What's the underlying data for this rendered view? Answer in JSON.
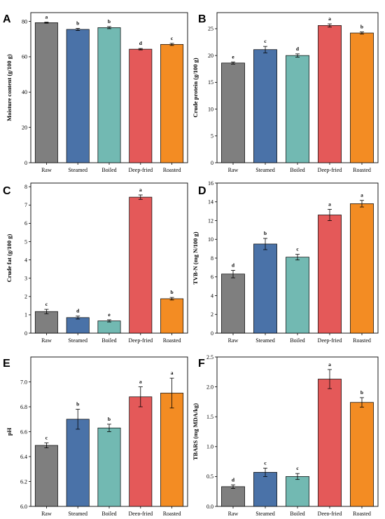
{
  "colors": {
    "Raw": "#7f7f7f",
    "Steamed": "#4a72a8",
    "Boiled": "#72b9b2",
    "Deep-fried": "#e45959",
    "Roasted": "#f38c23"
  },
  "chart_data": [
    {
      "panel": "A",
      "type": "bar",
      "categories": [
        "Raw",
        "Steamed",
        "Boiled",
        "Deep-fried",
        "Roasted"
      ],
      "values": [
        79.3,
        75.5,
        76.5,
        64.3,
        67.0
      ],
      "errors": [
        0.3,
        0.6,
        0.6,
        0.4,
        0.6
      ],
      "labels": [
        "a",
        "b",
        "b",
        "d",
        "c"
      ],
      "ylabel": "Moisture content (g/100 g)",
      "ylim": [
        0,
        85
      ],
      "yticks": [
        0,
        20,
        40,
        60,
        80
      ]
    },
    {
      "panel": "B",
      "type": "bar",
      "categories": [
        "Raw",
        "Steamed",
        "Boiled",
        "Deep-fried",
        "Roasted"
      ],
      "values": [
        18.6,
        21.1,
        20.0,
        25.6,
        24.2
      ],
      "errors": [
        0.2,
        0.6,
        0.3,
        0.3,
        0.2
      ],
      "labels": [
        "e",
        "c",
        "d",
        "a",
        "b"
      ],
      "ylabel": "Crude protein (g/100 g)",
      "ylim": [
        0,
        28
      ],
      "yticks": [
        0,
        5,
        10,
        15,
        20,
        25
      ]
    },
    {
      "panel": "C",
      "type": "bar",
      "categories": [
        "Raw",
        "Steamed",
        "Boiled",
        "Deep-fried",
        "Roasted"
      ],
      "values": [
        1.18,
        0.85,
        0.67,
        7.43,
        1.88
      ],
      "errors": [
        0.12,
        0.08,
        0.06,
        0.12,
        0.07
      ],
      "labels": [
        "c",
        "d",
        "e",
        "a",
        "b"
      ],
      "ylabel": "Crude fat (g/100 g)",
      "ylim": [
        0,
        8.2
      ],
      "yticks": [
        0,
        1,
        2,
        3,
        4,
        5,
        6,
        7,
        8
      ]
    },
    {
      "panel": "D",
      "type": "bar",
      "categories": [
        "Raw",
        "Steamed",
        "Boiled",
        "Deep-fried",
        "Roasted"
      ],
      "values": [
        6.3,
        9.5,
        8.1,
        12.6,
        13.8
      ],
      "errors": [
        0.4,
        0.6,
        0.3,
        0.6,
        0.35
      ],
      "labels": [
        "d",
        "b",
        "c",
        "a",
        "a"
      ],
      "ylabel": "TVB-N (mg N/100 g)",
      "ylim": [
        0,
        16
      ],
      "yticks": [
        0,
        2,
        4,
        6,
        8,
        10,
        12,
        14,
        16
      ]
    },
    {
      "panel": "E",
      "type": "bar",
      "categories": [
        "Raw",
        "Steamed",
        "Boiled",
        "Deep-fried",
        "Roasted"
      ],
      "values": [
        6.49,
        6.7,
        6.63,
        6.88,
        6.91
      ],
      "errors": [
        0.02,
        0.08,
        0.03,
        0.08,
        0.12
      ],
      "labels": [
        "c",
        "b",
        "b",
        "a",
        "a"
      ],
      "ylabel": "pH",
      "ylim": [
        6.0,
        7.2
      ],
      "yticks": [
        6.0,
        6.2,
        6.4,
        6.6,
        6.8,
        7.0
      ]
    },
    {
      "panel": "F",
      "type": "bar",
      "categories": [
        "Raw",
        "Steamed",
        "Boiled",
        "Deep-fried",
        "Roasted"
      ],
      "values": [
        0.33,
        0.57,
        0.5,
        2.13,
        1.74
      ],
      "errors": [
        0.03,
        0.07,
        0.05,
        0.16,
        0.08
      ],
      "labels": [
        "d",
        "c",
        "c",
        "a",
        "b"
      ],
      "ylabel": "TBARS (mg MDA/kg)",
      "ylim": [
        0,
        2.5
      ],
      "yticks": [
        0.0,
        0.5,
        1.0,
        1.5,
        2.0,
        2.5
      ]
    }
  ]
}
